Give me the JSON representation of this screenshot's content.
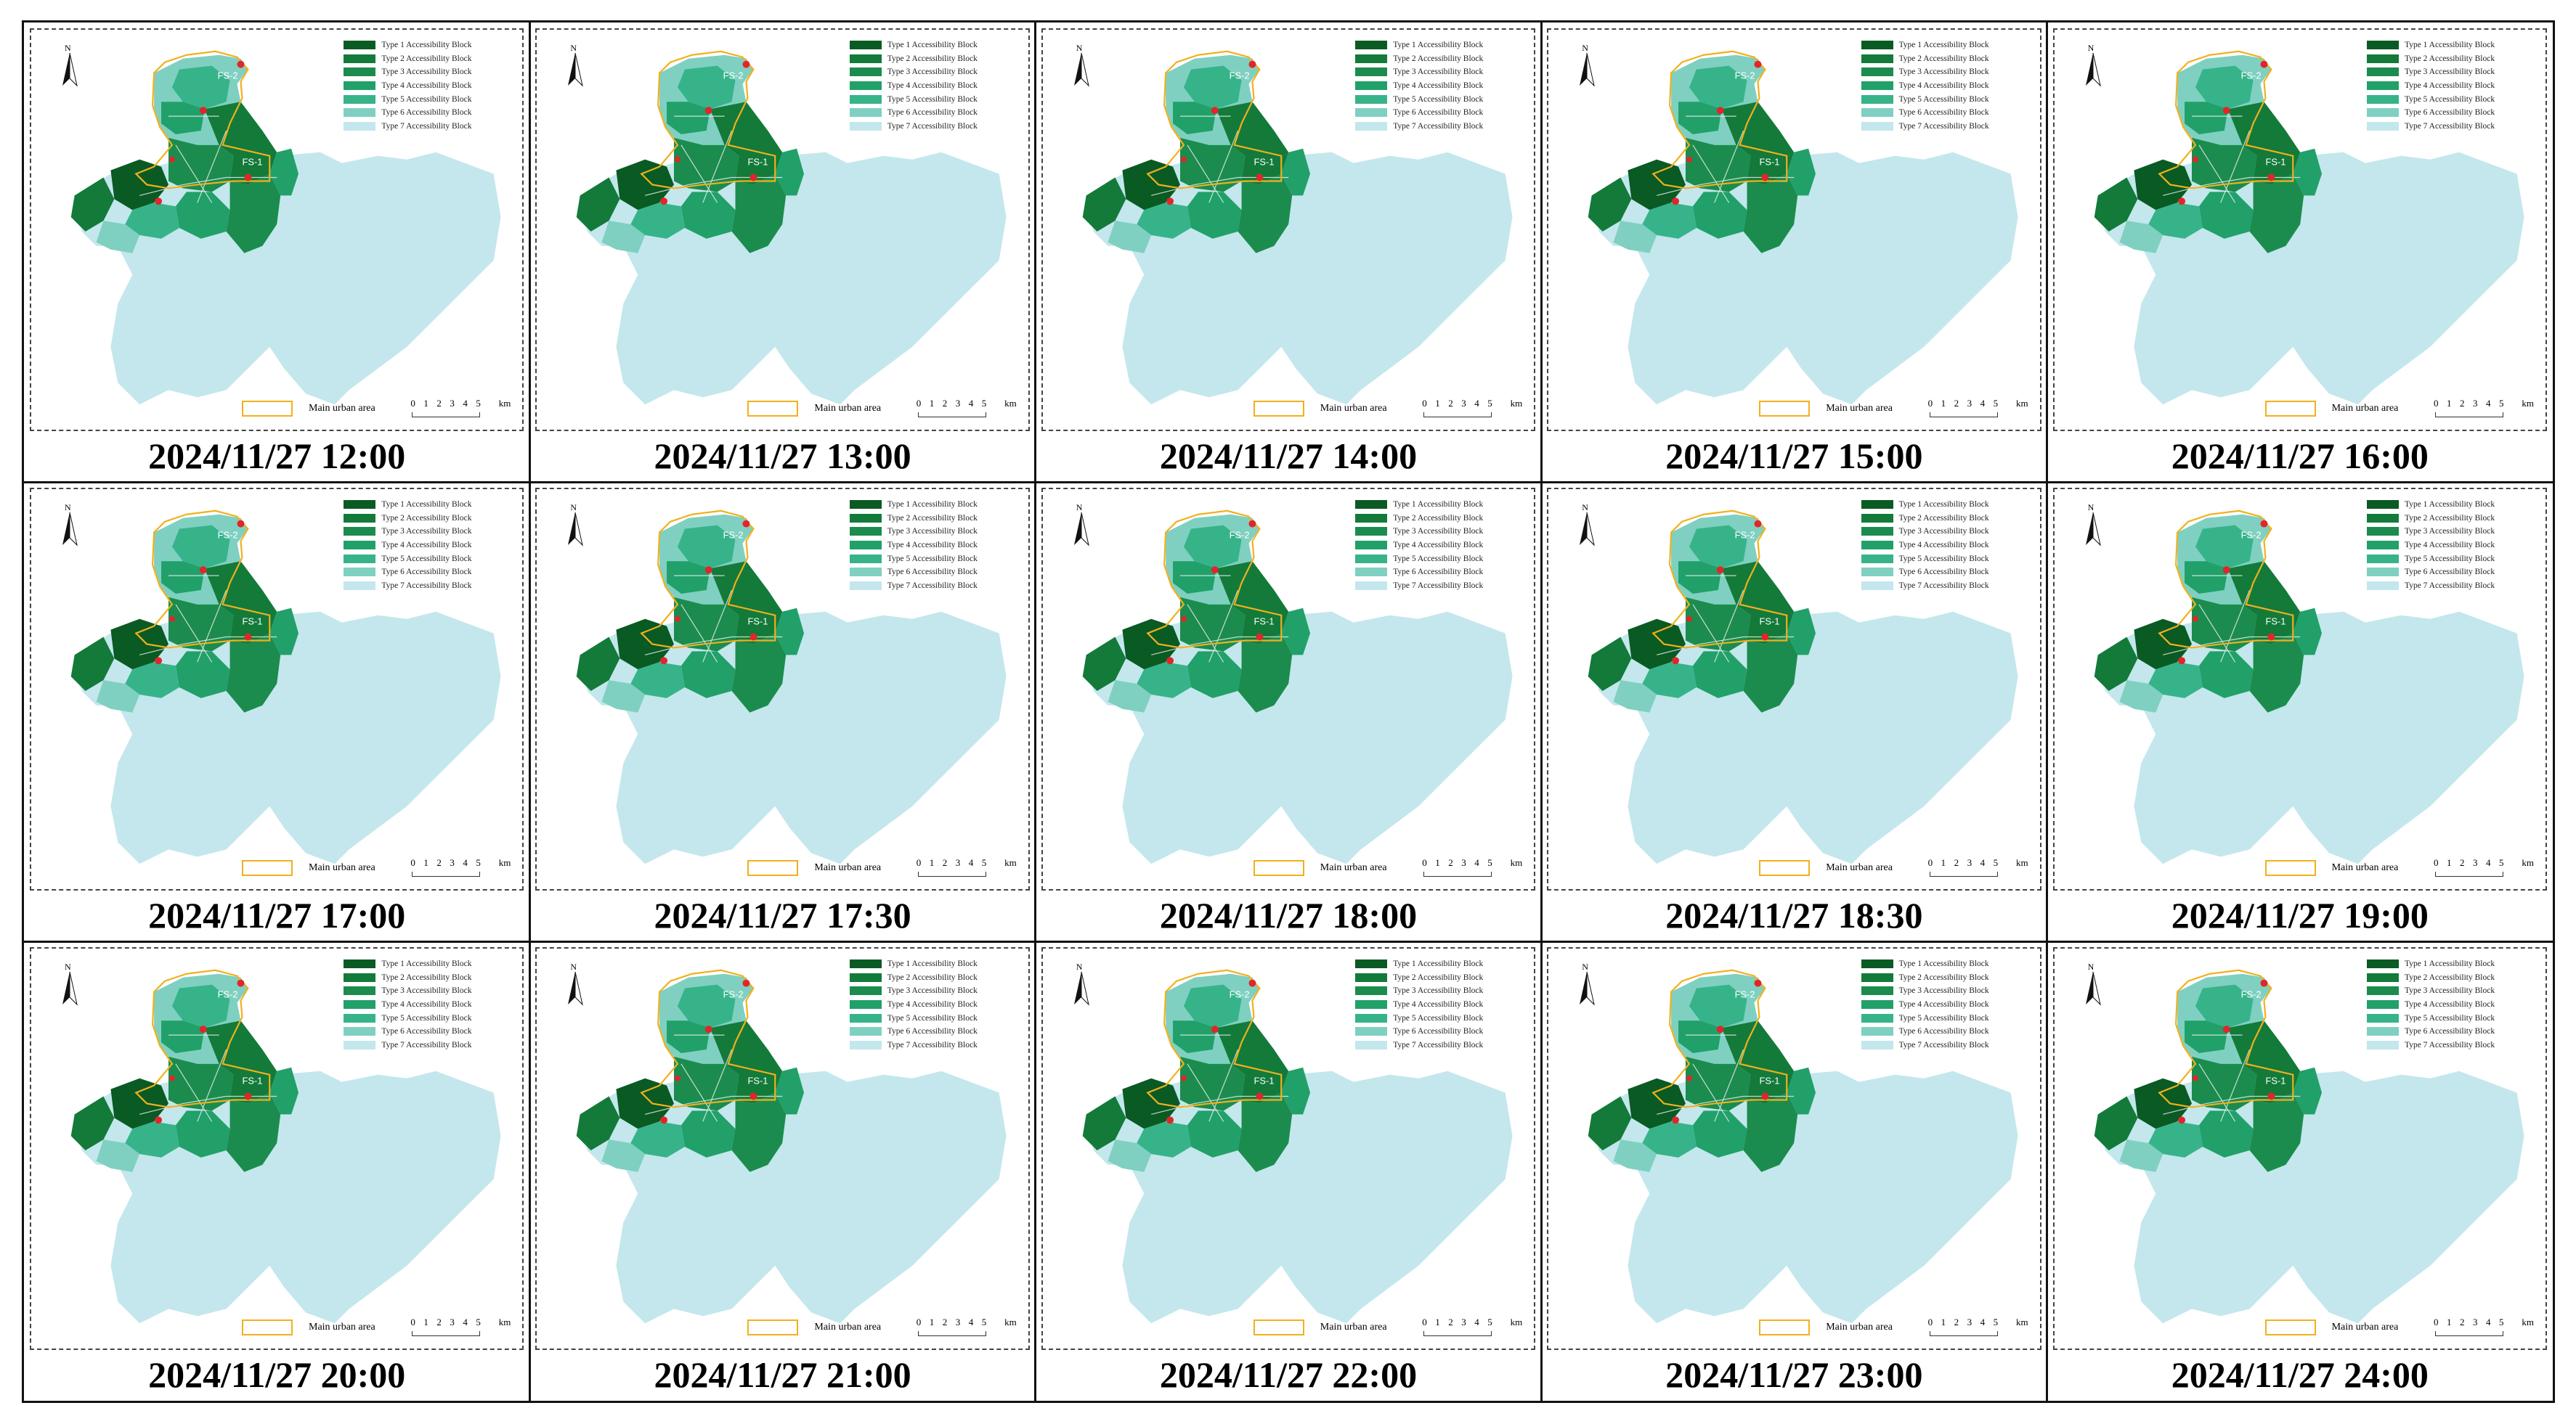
{
  "colors": {
    "type1": "#0a5a23",
    "type2": "#137a3a",
    "type3": "#1b8c4e",
    "type4": "#21a06a",
    "type5": "#37b38a",
    "type6": "#7fd0c1",
    "type7": "#c3e7ec",
    "urban_outline": "#f2b01e",
    "station": "#e0262b"
  },
  "legend": {
    "items": [
      "Type 1 Accessibility Block",
      "Type 2 Accessibility Block",
      "Type 3 Accessibility Block",
      "Type 4 Accessibility Block",
      "Type 5 Accessibility Block",
      "Type 6 Accessibility Block",
      "Type 7 Accessibility Block"
    ],
    "urban_area": "Main urban area"
  },
  "north_label": "N",
  "scale": {
    "ticks": [
      "0",
      "1",
      "2",
      "3",
      "4",
      "5"
    ],
    "unit": "km"
  },
  "station_labels": [
    "FS-2",
    "FS-1"
  ],
  "panels": [
    {
      "caption": "2024/11/27 12:00"
    },
    {
      "caption": "2024/11/27 13:00"
    },
    {
      "caption": "2024/11/27 14:00"
    },
    {
      "caption": "2024/11/27 15:00"
    },
    {
      "caption": "2024/11/27 16:00"
    },
    {
      "caption": "2024/11/27 17:00"
    },
    {
      "caption": "2024/11/27 17:30"
    },
    {
      "caption": "2024/11/27 18:00"
    },
    {
      "caption": "2024/11/27 18:30"
    },
    {
      "caption": "2024/11/27 19:00"
    },
    {
      "caption": "2024/11/27 20:00"
    },
    {
      "caption": "2024/11/27 21:00"
    },
    {
      "caption": "2024/11/27 22:00"
    },
    {
      "caption": "2024/11/27 23:00"
    },
    {
      "caption": "2024/11/27 24:00"
    }
  ]
}
